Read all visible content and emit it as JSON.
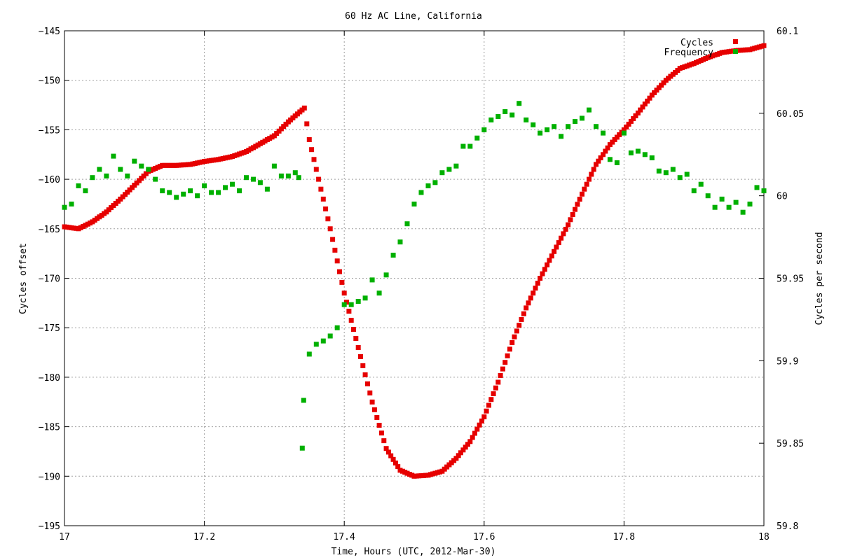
{
  "chart_data": {
    "type": "scatter",
    "title": "60 Hz AC Line, California",
    "xlabel": "Time, Hours (UTC, 2012-Mar-30)",
    "ylabel": "Cycles offset",
    "y2label": "Cycles per second",
    "xlim": [
      17,
      18
    ],
    "ylim": [
      -195,
      -145
    ],
    "y2lim": [
      59.8,
      60.1
    ],
    "grid": true,
    "legend_position": "top-right",
    "x_ticks": [
      "17",
      "17.2",
      "17.4",
      "17.6",
      "17.8",
      "18"
    ],
    "y_ticks": [
      "−145",
      "−150",
      "−155",
      "−160",
      "−165",
      "−170",
      "−175",
      "−180",
      "−185",
      "−190",
      "−195"
    ],
    "y2_ticks": [
      "60.1",
      "60.05",
      "60",
      "59.95",
      "59.9",
      "59.85",
      "59.8"
    ],
    "series": [
      {
        "name": "Cycles",
        "color": "#e60000",
        "axis": "left",
        "points": [
          [
            17.0,
            -164.8
          ],
          [
            17.02,
            -165.0
          ],
          [
            17.04,
            -164.3
          ],
          [
            17.06,
            -163.3
          ],
          [
            17.08,
            -162.0
          ],
          [
            17.1,
            -160.6
          ],
          [
            17.12,
            -159.2
          ],
          [
            17.14,
            -158.6
          ],
          [
            17.16,
            -158.6
          ],
          [
            17.18,
            -158.5
          ],
          [
            17.2,
            -158.2
          ],
          [
            17.22,
            -158.0
          ],
          [
            17.24,
            -157.7
          ],
          [
            17.26,
            -157.2
          ],
          [
            17.28,
            -156.4
          ],
          [
            17.3,
            -155.6
          ],
          [
            17.32,
            -154.2
          ],
          [
            17.343,
            -152.8
          ],
          [
            17.35,
            -156.0
          ],
          [
            17.36,
            -159.0
          ],
          [
            17.38,
            -165.0
          ],
          [
            17.4,
            -171.5
          ],
          [
            17.42,
            -177.0
          ],
          [
            17.44,
            -182.5
          ],
          [
            17.46,
            -187.2
          ],
          [
            17.48,
            -189.4
          ],
          [
            17.5,
            -190.0
          ],
          [
            17.52,
            -189.9
          ],
          [
            17.54,
            -189.5
          ],
          [
            17.56,
            -188.2
          ],
          [
            17.58,
            -186.5
          ],
          [
            17.6,
            -184.0
          ],
          [
            17.62,
            -180.5
          ],
          [
            17.64,
            -176.5
          ],
          [
            17.66,
            -173.0
          ],
          [
            17.68,
            -170.0
          ],
          [
            17.7,
            -167.3
          ],
          [
            17.72,
            -164.6
          ],
          [
            17.74,
            -161.5
          ],
          [
            17.76,
            -158.5
          ],
          [
            17.78,
            -156.5
          ],
          [
            17.8,
            -155.0
          ],
          [
            17.82,
            -153.3
          ],
          [
            17.84,
            -151.5
          ],
          [
            17.86,
            -150.0
          ],
          [
            17.88,
            -148.8
          ],
          [
            17.9,
            -148.3
          ],
          [
            17.92,
            -147.7
          ],
          [
            17.94,
            -147.2
          ],
          [
            17.96,
            -147.0
          ],
          [
            17.98,
            -146.9
          ],
          [
            18.0,
            -146.5
          ]
        ]
      },
      {
        "name": "Frequency",
        "color": "#00b000",
        "axis": "right",
        "points": [
          [
            17.0,
            59.993
          ],
          [
            17.01,
            59.995
          ],
          [
            17.02,
            60.006
          ],
          [
            17.03,
            60.003
          ],
          [
            17.04,
            60.011
          ],
          [
            17.05,
            60.016
          ],
          [
            17.06,
            60.012
          ],
          [
            17.07,
            60.024
          ],
          [
            17.08,
            60.016
          ],
          [
            17.09,
            60.012
          ],
          [
            17.1,
            60.021
          ],
          [
            17.11,
            60.018
          ],
          [
            17.12,
            60.016
          ],
          [
            17.13,
            60.01
          ],
          [
            17.14,
            60.003
          ],
          [
            17.15,
            60.002
          ],
          [
            17.16,
            59.999
          ],
          [
            17.17,
            60.001
          ],
          [
            17.18,
            60.003
          ],
          [
            17.19,
            60.0
          ],
          [
            17.2,
            60.006
          ],
          [
            17.21,
            60.002
          ],
          [
            17.22,
            60.002
          ],
          [
            17.23,
            60.005
          ],
          [
            17.24,
            60.007
          ],
          [
            17.25,
            60.003
          ],
          [
            17.26,
            60.011
          ],
          [
            17.27,
            60.01
          ],
          [
            17.28,
            60.008
          ],
          [
            17.29,
            60.004
          ],
          [
            17.3,
            60.018
          ],
          [
            17.31,
            60.012
          ],
          [
            17.32,
            60.012
          ],
          [
            17.33,
            60.014
          ],
          [
            17.335,
            60.011
          ],
          [
            17.34,
            59.847
          ],
          [
            17.342,
            59.876
          ],
          [
            17.35,
            59.904
          ],
          [
            17.36,
            59.91
          ],
          [
            17.37,
            59.912
          ],
          [
            17.38,
            59.915
          ],
          [
            17.39,
            59.92
          ],
          [
            17.4,
            59.934
          ],
          [
            17.41,
            59.934
          ],
          [
            17.42,
            59.936
          ],
          [
            17.43,
            59.938
          ],
          [
            17.44,
            59.949
          ],
          [
            17.45,
            59.941
          ],
          [
            17.46,
            59.952
          ],
          [
            17.47,
            59.964
          ],
          [
            17.48,
            59.972
          ],
          [
            17.49,
            59.983
          ],
          [
            17.5,
            59.995
          ],
          [
            17.51,
            60.002
          ],
          [
            17.52,
            60.006
          ],
          [
            17.53,
            60.008
          ],
          [
            17.54,
            60.014
          ],
          [
            17.55,
            60.016
          ],
          [
            17.56,
            60.018
          ],
          [
            17.57,
            60.03
          ],
          [
            17.58,
            60.03
          ],
          [
            17.59,
            60.035
          ],
          [
            17.6,
            60.04
          ],
          [
            17.61,
            60.046
          ],
          [
            17.62,
            60.048
          ],
          [
            17.63,
            60.051
          ],
          [
            17.64,
            60.049
          ],
          [
            17.65,
            60.056
          ],
          [
            17.66,
            60.046
          ],
          [
            17.67,
            60.043
          ],
          [
            17.68,
            60.038
          ],
          [
            17.69,
            60.04
          ],
          [
            17.7,
            60.042
          ],
          [
            17.71,
            60.036
          ],
          [
            17.72,
            60.042
          ],
          [
            17.73,
            60.045
          ],
          [
            17.74,
            60.047
          ],
          [
            17.75,
            60.052
          ],
          [
            17.76,
            60.042
          ],
          [
            17.77,
            60.038
          ],
          [
            17.78,
            60.022
          ],
          [
            17.79,
            60.02
          ],
          [
            17.8,
            60.038
          ],
          [
            17.81,
            60.026
          ],
          [
            17.82,
            60.027
          ],
          [
            17.83,
            60.025
          ],
          [
            17.84,
            60.023
          ],
          [
            17.85,
            60.015
          ],
          [
            17.86,
            60.014
          ],
          [
            17.87,
            60.016
          ],
          [
            17.88,
            60.011
          ],
          [
            17.89,
            60.013
          ],
          [
            17.9,
            60.003
          ],
          [
            17.91,
            60.007
          ],
          [
            17.92,
            60.0
          ],
          [
            17.93,
            59.993
          ],
          [
            17.94,
            59.998
          ],
          [
            17.95,
            59.993
          ],
          [
            17.96,
            59.996
          ],
          [
            17.97,
            59.99
          ],
          [
            17.98,
            59.995
          ],
          [
            17.99,
            60.005
          ],
          [
            18.0,
            60.003
          ]
        ]
      }
    ]
  }
}
